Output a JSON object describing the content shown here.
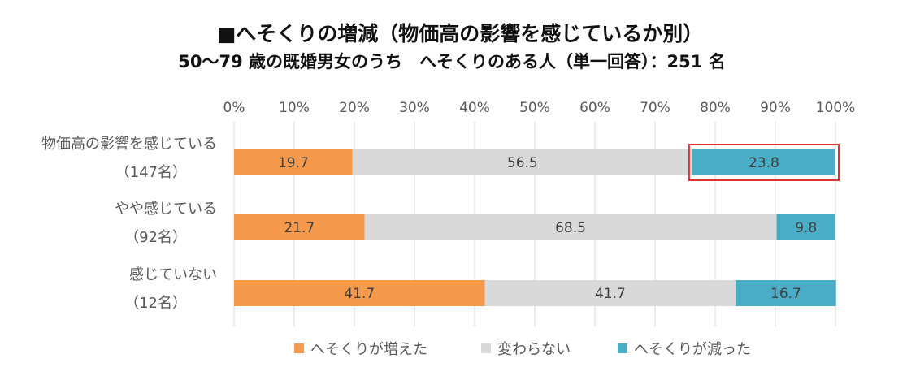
{
  "chart_data": {
    "type": "bar",
    "orientation": "horizontal-stacked-100",
    "title": "■へそくりの増減（物価高の影響を感じているか別）",
    "subtitle": "50～79 歳の既婚男女のうち　へそくりのある人（単一回答）：251 名",
    "categories": [
      {
        "label": "物価高の影響を感じている",
        "n": "（147名）"
      },
      {
        "label": "やや感じている",
        "n": "（92名）"
      },
      {
        "label": "感じていない",
        "n": "（12名）"
      }
    ],
    "series": [
      {
        "name": "へそくりが増えた",
        "color": "#F59A4C",
        "values": [
          19.7,
          21.7,
          41.7
        ]
      },
      {
        "name": "変わらない",
        "color": "#D9D9D9",
        "values": [
          56.5,
          68.5,
          41.7
        ]
      },
      {
        "name": "へそくりが減った",
        "color": "#4BACC6",
        "values": [
          23.8,
          9.8,
          16.7
        ]
      }
    ],
    "xlim": [
      0,
      100
    ],
    "x_ticks": [
      "0%",
      "10%",
      "20%",
      "30%",
      "40%",
      "50%",
      "60%",
      "70%",
      "80%",
      "90%",
      "100%"
    ],
    "gridlines": true,
    "legend": "bottom",
    "highlight": {
      "category_index": 0,
      "series_index": 2,
      "color": "#E03030"
    }
  }
}
